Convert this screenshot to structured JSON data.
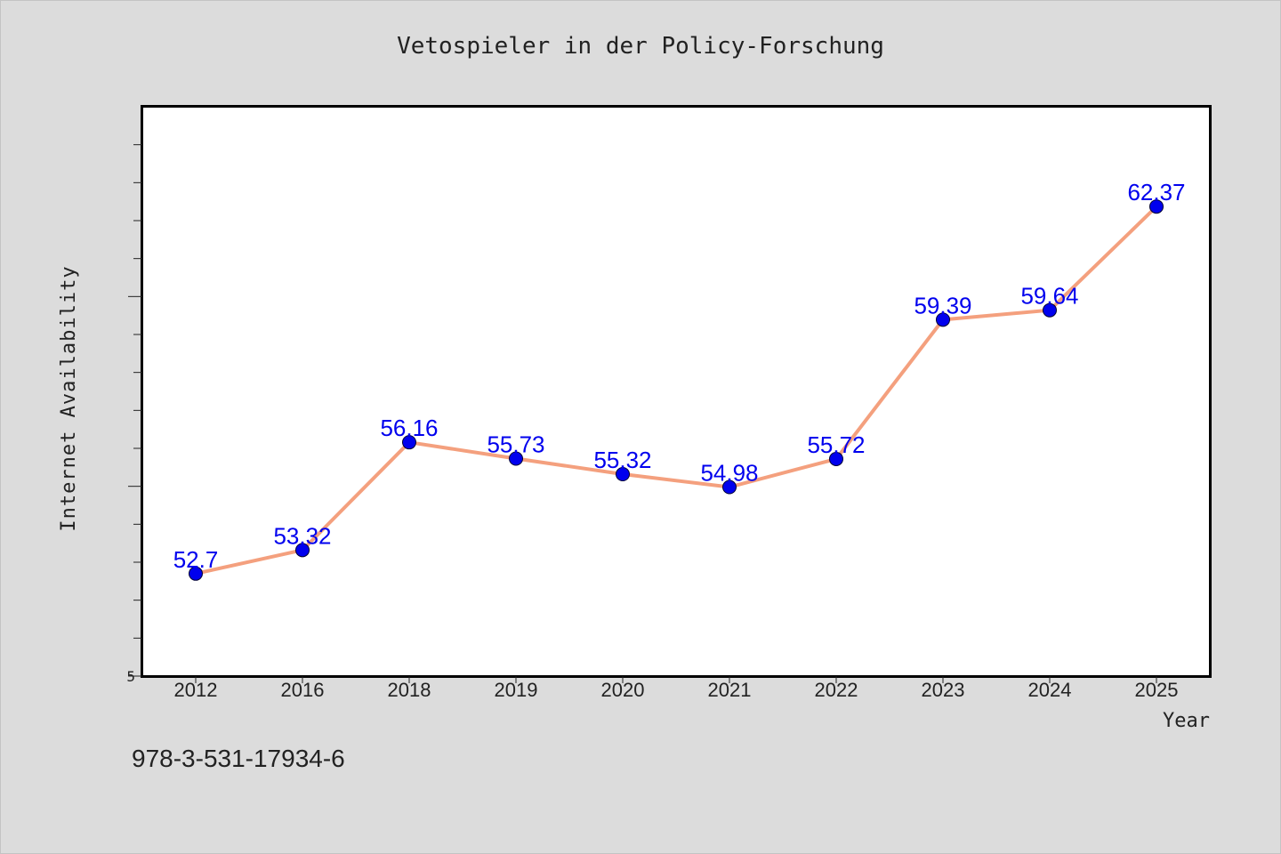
{
  "colors": {
    "background": "#dcdcdc",
    "plot_background": "#ffffff",
    "line": "#f4a07e",
    "marker": "#0000ee",
    "data_label": "#0000ee",
    "text": "#222222"
  },
  "footer": {
    "isbn": "978-3-531-17934-6"
  },
  "chart_data": {
    "type": "line",
    "title": "Vetospieler in der Policy-Forschung",
    "xlabel": "Year",
    "ylabel": "Internet Availability",
    "categories": [
      "2012",
      "2016",
      "2018",
      "2019",
      "2020",
      "2021",
      "2022",
      "2023",
      "2024",
      "2025"
    ],
    "series": [
      {
        "values": [
          52.7,
          53.32,
          56.16,
          55.73,
          55.32,
          54.98,
          55.72,
          59.39,
          59.64,
          62.37
        ],
        "labels": [
          "52.7",
          "53.32",
          "56.16",
          "55.73",
          "55.32",
          "54.98",
          "55.72",
          "59.39",
          "59.64",
          "62.37"
        ]
      }
    ],
    "ylim": [
      50.0,
      65.0
    ],
    "y_tick_labels": [
      {
        "value": 50.0,
        "label": "5"
      }
    ],
    "grid": false,
    "legend": "none"
  }
}
